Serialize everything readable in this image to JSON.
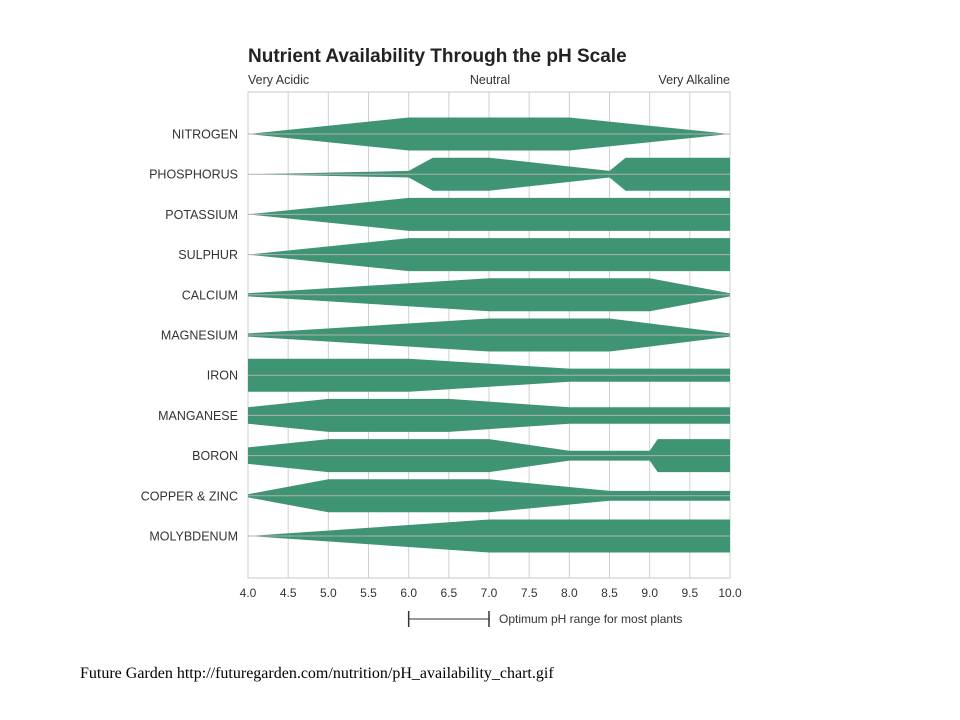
{
  "chart_data": {
    "type": "area",
    "title": "Nutrient Availability Through the pH Scale",
    "scale_labels": {
      "left": "Very Acidic",
      "center": "Neutral",
      "right": "Very Alkaline"
    },
    "x_ticks": [
      "4.0",
      "4.5",
      "5.0",
      "5.5",
      "6.0",
      "6.5",
      "7.0",
      "7.5",
      "8.0",
      "8.5",
      "9.0",
      "9.5",
      "10.0"
    ],
    "xlim": [
      4.0,
      10.0
    ],
    "max_relative_width": 1.0,
    "color": "#3e9473",
    "nutrients": [
      {
        "name": "NITROGEN",
        "profile": [
          [
            4.0,
            0.0
          ],
          [
            6.0,
            1.0
          ],
          [
            8.0,
            1.0
          ],
          [
            10.0,
            0.0
          ]
        ]
      },
      {
        "name": "PHOSPHORUS",
        "profile": [
          [
            4.0,
            0.0
          ],
          [
            6.0,
            0.2
          ],
          [
            6.3,
            1.0
          ],
          [
            7.0,
            1.0
          ],
          [
            8.5,
            0.2
          ],
          [
            8.7,
            1.0
          ],
          [
            10.0,
            1.0
          ]
        ]
      },
      {
        "name": "POTASSIUM",
        "profile": [
          [
            4.0,
            0.0
          ],
          [
            6.0,
            1.0
          ],
          [
            10.0,
            1.0
          ]
        ]
      },
      {
        "name": "SULPHUR",
        "profile": [
          [
            4.0,
            0.0
          ],
          [
            6.0,
            1.0
          ],
          [
            10.0,
            1.0
          ]
        ]
      },
      {
        "name": "CALCIUM",
        "profile": [
          [
            4.0,
            0.1
          ],
          [
            7.0,
            1.0
          ],
          [
            9.0,
            1.0
          ],
          [
            10.0,
            0.1
          ]
        ]
      },
      {
        "name": "MAGNESIUM",
        "profile": [
          [
            4.0,
            0.1
          ],
          [
            7.0,
            1.0
          ],
          [
            8.5,
            1.0
          ],
          [
            10.0,
            0.1
          ]
        ]
      },
      {
        "name": "IRON",
        "profile": [
          [
            4.0,
            1.0
          ],
          [
            6.0,
            1.0
          ],
          [
            8.0,
            0.4
          ],
          [
            10.0,
            0.4
          ]
        ]
      },
      {
        "name": "MANGANESE",
        "profile": [
          [
            4.0,
            0.5
          ],
          [
            5.0,
            1.0
          ],
          [
            6.5,
            1.0
          ],
          [
            8.0,
            0.5
          ],
          [
            10.0,
            0.5
          ]
        ]
      },
      {
        "name": "BORON",
        "profile": [
          [
            4.0,
            0.5
          ],
          [
            5.0,
            1.0
          ],
          [
            7.0,
            1.0
          ],
          [
            8.0,
            0.3
          ],
          [
            9.0,
            0.3
          ],
          [
            9.1,
            1.0
          ],
          [
            10.0,
            1.0
          ]
        ]
      },
      {
        "name": "COPPER & ZINC",
        "profile": [
          [
            4.0,
            0.1
          ],
          [
            5.0,
            1.0
          ],
          [
            7.0,
            1.0
          ],
          [
            8.5,
            0.3
          ],
          [
            10.0,
            0.3
          ]
        ]
      },
      {
        "name": "MOLYBDENUM",
        "profile": [
          [
            4.0,
            0.0
          ],
          [
            7.0,
            1.0
          ],
          [
            10.0,
            1.0
          ]
        ]
      }
    ],
    "optimum_range": [
      6.0,
      7.0
    ],
    "optimum_label": "Optimum pH range for most plants",
    "grid": true
  },
  "caption": "Future Garden http://futuregarden.com/nutrition/pH_availability_chart.gif"
}
